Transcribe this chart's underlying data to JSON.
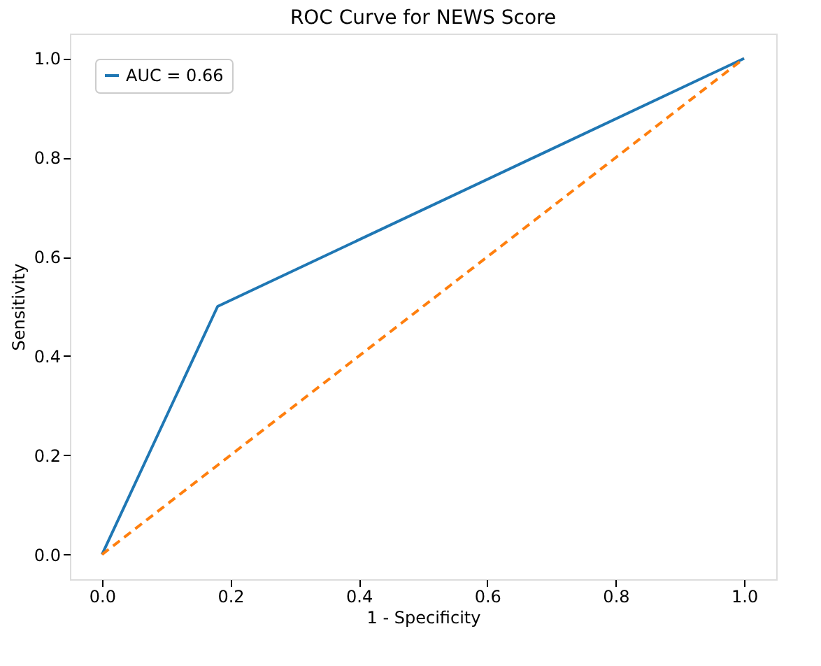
{
  "chart_data": {
    "type": "line",
    "title": "ROC Curve for NEWS Score",
    "xlabel": "1 - Specificity",
    "ylabel": "Sensitivity",
    "xlim": [
      -0.05,
      1.05
    ],
    "ylim": [
      -0.05,
      1.05
    ],
    "xticks": [
      {
        "value": 0,
        "label": "0.0"
      },
      {
        "value": 0.2,
        "label": "0.2"
      },
      {
        "value": 0.4,
        "label": "0.4"
      },
      {
        "value": 0.6,
        "label": "0.6"
      },
      {
        "value": 0.8,
        "label": "0.8"
      },
      {
        "value": 1,
        "label": "1.0"
      }
    ],
    "yticks": [
      {
        "value": 0,
        "label": "0.0"
      },
      {
        "value": 0.2,
        "label": "0.2"
      },
      {
        "value": 0.4,
        "label": "0.4"
      },
      {
        "value": 0.6,
        "label": "0.6"
      },
      {
        "value": 0.8,
        "label": "0.8"
      },
      {
        "value": 1,
        "label": "1.0"
      }
    ],
    "series": [
      {
        "name": "AUC = 0.66",
        "color": "#1f77b4",
        "x": [
          0,
          0.18,
          1
        ],
        "values": [
          0,
          0.5,
          1
        ],
        "line_style": "solid"
      },
      {
        "color": "#ff7f0e",
        "x": [
          0,
          1
        ],
        "values": [
          0,
          1
        ],
        "line_style": "dashed"
      }
    ],
    "legend": "top left",
    "grid": false,
    "marker": "none"
  }
}
